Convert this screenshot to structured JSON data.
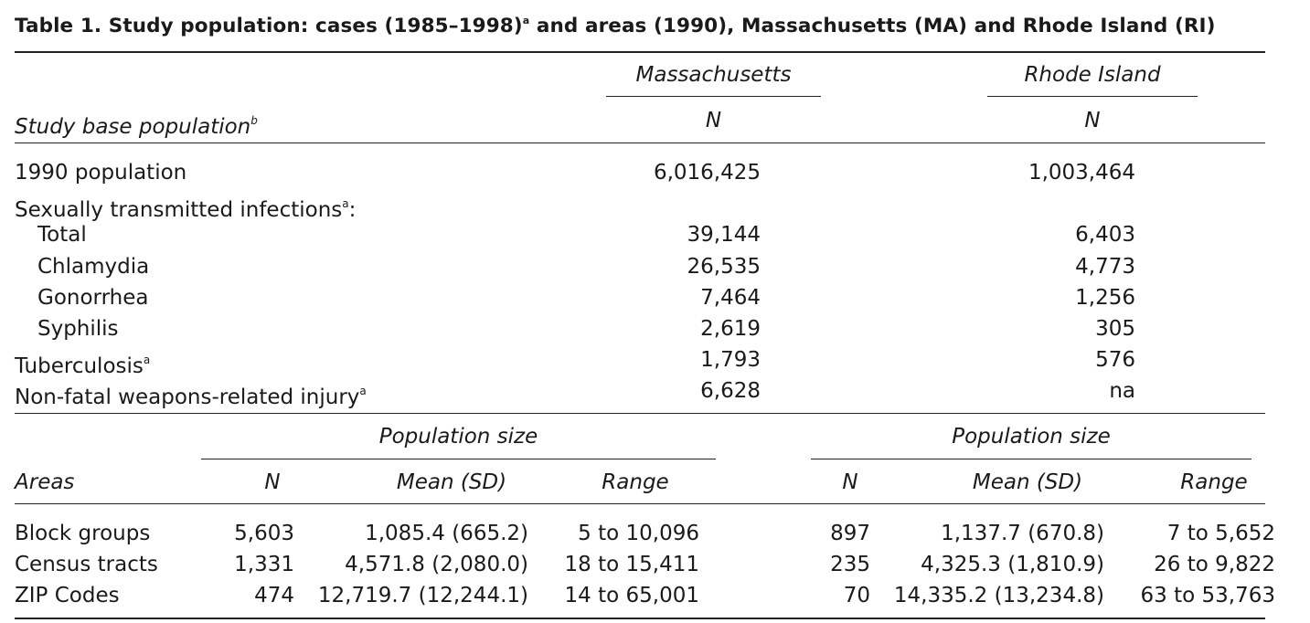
{
  "table": {
    "title": "Table 1. Study population: cases (1985–1998)",
    "title_sup": "a",
    "title_rest": " and areas (1990), Massachusetts (MA) and Rhode Island (RI)",
    "top": {
      "state_headers": [
        "Massachusetts",
        "Rhode Island"
      ],
      "row_header": "Study base population",
      "row_header_sup": "b",
      "n_label": "N",
      "rows": [
        {
          "label": "1990 population",
          "sup": "",
          "ma": "6,016,425",
          "ri": "1,003,464"
        },
        {
          "label": "Sexually transmitted infections",
          "sup": "a",
          "suffix": ":",
          "ma": "",
          "ri": ""
        },
        {
          "label": "Total",
          "sup": "",
          "ma": "39,144",
          "ri": "6,403"
        },
        {
          "label": "Chlamydia",
          "sup": "",
          "ma": "26,535",
          "ri": "4,773"
        },
        {
          "label": "Gonorrhea",
          "sup": "",
          "ma": "7,464",
          "ri": "1,256"
        },
        {
          "label": "Syphilis",
          "sup": "",
          "ma": "2,619",
          "ri": "305"
        },
        {
          "label": "Tuberculosis",
          "sup": "a",
          "ma": "1,793",
          "ri": "576"
        },
        {
          "label": "Non-fatal weapons-related injury",
          "sup": "a",
          "ma": "6,628",
          "ri": "na"
        }
      ]
    },
    "bottom": {
      "group_header": "Population size",
      "areas_label": "Areas",
      "col_n": "N",
      "col_mean": "Mean (SD)",
      "col_range": "Range",
      "rows": [
        {
          "label": "Block groups",
          "ma_n": "5,603",
          "ma_mean": "1,085.4 (665.2)",
          "ma_range": "5 to 10,096",
          "ri_n": "897",
          "ri_mean": "1,137.7 (670.8)",
          "ri_range": "7 to 5,652"
        },
        {
          "label": "Census tracts",
          "ma_n": "1,331",
          "ma_mean": "4,571.8 (2,080.0)",
          "ma_range": "18 to 15,411",
          "ri_n": "235",
          "ri_mean": "4,325.3 (1,810.9)",
          "ri_range": "26 to 9,822"
        },
        {
          "label": "ZIP Codes",
          "ma_n": "474",
          "ma_mean": "12,719.7 (12,244.1)",
          "ma_range": "14 to 65,001",
          "ri_n": "70",
          "ri_mean": "14,335.2 (13,234.8)",
          "ri_range": "63 to 53,763"
        }
      ]
    }
  }
}
